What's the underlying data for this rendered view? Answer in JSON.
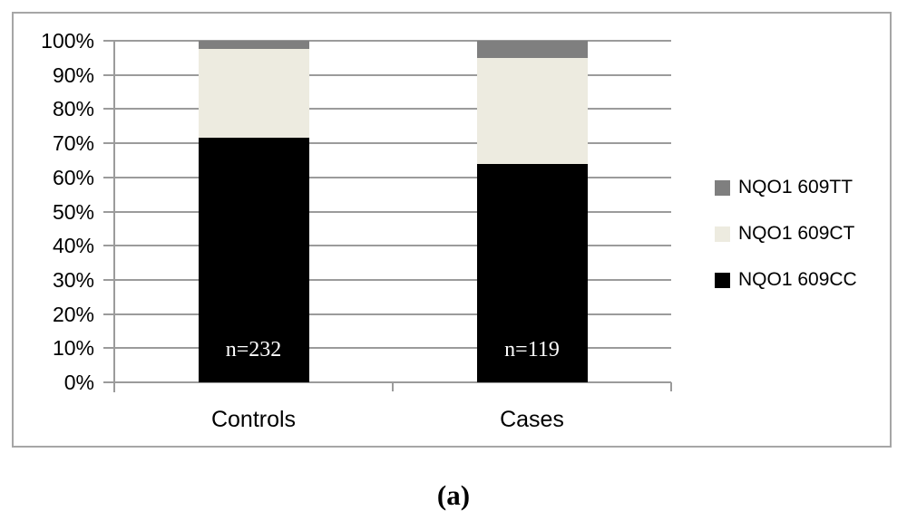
{
  "figure": {
    "caption": "(a)"
  },
  "chart_data": {
    "type": "bar",
    "stacked": true,
    "title": "",
    "xlabel": "",
    "ylabel": "",
    "categories": [
      "Controls",
      "Cases"
    ],
    "category_counts": [
      "n=232",
      "n=119"
    ],
    "series": [
      {
        "name": "NQO1 609CC",
        "color": "#000000",
        "values": [
          71.6,
          63.9
        ]
      },
      {
        "name": "NQO1 609CT",
        "color": "#edebe0",
        "values": [
          25.9,
          31.1
        ]
      },
      {
        "name": "NQO1 609TT",
        "color": "#7f7f7f",
        "values": [
          2.5,
          5.0
        ]
      }
    ],
    "y_axis": {
      "min": 0,
      "max": 100,
      "step": 10,
      "ticks": [
        "100%",
        "90%",
        "80%",
        "70%",
        "60%",
        "50%",
        "40%",
        "30%",
        "20%",
        "10%",
        "0%"
      ]
    },
    "grid": true,
    "legend_position": "right",
    "legend_order_top_to_bottom": [
      "NQO1 609TT",
      "NQO1 609CT",
      "NQO1 609CC"
    ],
    "colors": {
      "grid": "#9b9b9b",
      "axis": "#9b9b9b",
      "frame_border": "#a6a6a6",
      "count_label_text": "#ffffff"
    }
  }
}
